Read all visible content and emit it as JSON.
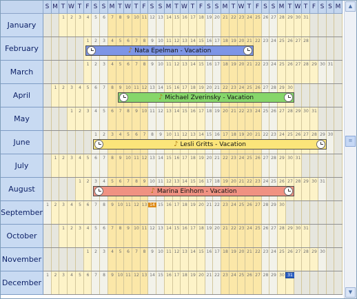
{
  "weekday_header": [
    "S",
    "M",
    "T",
    "W",
    "T",
    "F",
    "S",
    "S",
    "M",
    "T",
    "W",
    "T",
    "F",
    "S",
    "S",
    "M",
    "T",
    "W",
    "T",
    "F",
    "S",
    "S",
    "M",
    "T",
    "W",
    "T",
    "F",
    "S",
    "S",
    "M",
    "T",
    "W",
    "T",
    "F",
    "S",
    "S",
    "M"
  ],
  "months": [
    {
      "label": "January",
      "start": 2,
      "days": 31
    },
    {
      "label": "February",
      "start": 5,
      "days": 28
    },
    {
      "label": "March",
      "start": 5,
      "days": 31
    },
    {
      "label": "April",
      "start": 1,
      "days": 30
    },
    {
      "label": "May",
      "start": 3,
      "days": 31
    },
    {
      "label": "June",
      "start": 6,
      "days": 30
    },
    {
      "label": "July",
      "start": 1,
      "days": 31
    },
    {
      "label": "August",
      "start": 4,
      "days": 31
    },
    {
      "label": "September",
      "start": 0,
      "days": 30
    },
    {
      "label": "October",
      "start": 2,
      "days": 31
    },
    {
      "label": "November",
      "start": 5,
      "days": 30
    },
    {
      "label": "December",
      "start": 0,
      "days": 31
    }
  ],
  "today": {
    "month": 8,
    "day": 14
  },
  "events": [
    {
      "title": "Nata Epelman - Vacation",
      "month": 1,
      "start_day": 1,
      "end_day": 21,
      "color": "#7d95e6"
    },
    {
      "title": "Michael Zverinsky - Vacation",
      "month": 3,
      "start_day": 9,
      "end_day": 30,
      "color": "#86d66a"
    },
    {
      "title": "Lesli Gritts - Vacation",
      "month": 5,
      "start_day": 1,
      "end_day": 29,
      "color": "#fbe57a"
    },
    {
      "title": "Marina Einhorn - Vacation",
      "month": 7,
      "start_day": 3,
      "end_day": 27,
      "color": "#f09282"
    }
  ],
  "colors": {
    "workday": "#fdf3c8",
    "workday_alt": "#fbe7a8",
    "weekend": "#f2f2ea",
    "outside": "#e6e6de",
    "header_bg": "#c4d6ef",
    "month_bg": "#c8daf2"
  },
  "scrollbar": {
    "up_icon": "▲",
    "down_icon": "▼",
    "thumb_icon": "≡"
  }
}
